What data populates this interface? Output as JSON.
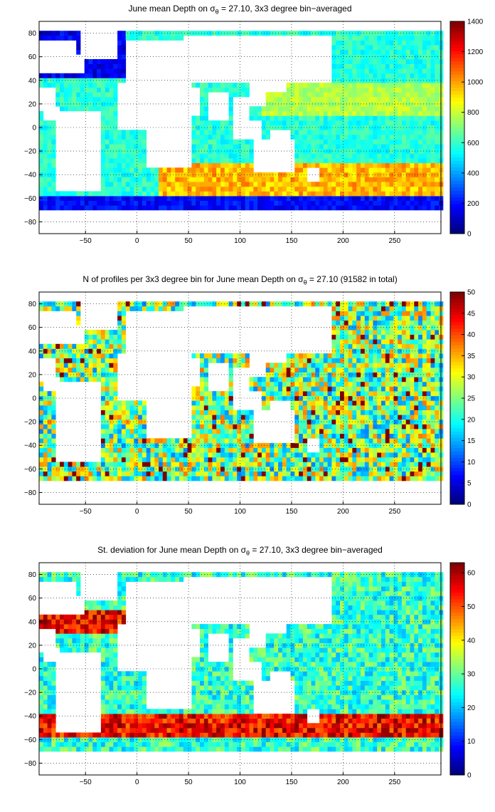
{
  "chart_data": [
    {
      "type": "heatmap",
      "title_pre": "June mean Depth on ",
      "title_sym": "σ",
      "title_sub": "θ",
      "title_post": " = 27.10, 3x3 degree bin−averaged",
      "xticks": [
        "−50",
        "0",
        "50",
        "100",
        "150",
        "200",
        "250"
      ],
      "xtick_values": [
        -50,
        0,
        50,
        100,
        150,
        200,
        250
      ],
      "yticks": [
        "80",
        "60",
        "40",
        "20",
        "0",
        "−20",
        "−40",
        "−60",
        "−80"
      ],
      "ytick_values": [
        80,
        60,
        40,
        20,
        0,
        -20,
        -40,
        -60,
        -80
      ],
      "xlim": [
        -95,
        295
      ],
      "ylim": [
        -90,
        90
      ],
      "grid": true,
      "colorbar_ticks": [
        "0",
        "200",
        "400",
        "600",
        "800",
        "1000",
        "1200",
        "1400"
      ],
      "clim": [
        0,
        1400
      ],
      "colormap": "jet"
    },
    {
      "type": "heatmap",
      "title_pre": "N of profiles per 3x3 degree bin for June mean Depth on ",
      "title_sym": "σ",
      "title_sub": "θ",
      "title_post": " = 27.10 (91582 in total)",
      "xticks": [
        "−50",
        "0",
        "50",
        "100",
        "150",
        "200",
        "250"
      ],
      "xtick_values": [
        -50,
        0,
        50,
        100,
        150,
        200,
        250
      ],
      "yticks": [
        "80",
        "60",
        "40",
        "20",
        "0",
        "−20",
        "−40",
        "−60",
        "−80"
      ],
      "ytick_values": [
        80,
        60,
        40,
        20,
        0,
        -20,
        -40,
        -60,
        -80
      ],
      "xlim": [
        -95,
        295
      ],
      "ylim": [
        -90,
        90
      ],
      "grid": true,
      "colorbar_ticks": [
        "0",
        "5",
        "10",
        "15",
        "20",
        "25",
        "30",
        "35",
        "40",
        "45",
        "50"
      ],
      "clim": [
        0,
        50
      ],
      "colormap": "jet"
    },
    {
      "type": "heatmap",
      "title_pre": "St. deviation for June mean Depth on ",
      "title_sym": "σ",
      "title_sub": "θ",
      "title_post": " = 27.10, 3x3 degree bin−averaged",
      "xticks": [
        "−50",
        "0",
        "50",
        "100",
        "150",
        "200",
        "250"
      ],
      "xtick_values": [
        -50,
        0,
        50,
        100,
        150,
        200,
        250
      ],
      "yticks": [
        "80",
        "60",
        "40",
        "20",
        "0",
        "−20",
        "−40",
        "−60",
        "−80"
      ],
      "ytick_values": [
        80,
        60,
        40,
        20,
        0,
        -20,
        -40,
        -60,
        -80
      ],
      "xlim": [
        -95,
        295
      ],
      "ylim": [
        -90,
        90
      ],
      "grid": true,
      "colorbar_ticks": [
        "0",
        "10",
        "20",
        "30",
        "40",
        "50",
        "60"
      ],
      "clim": [
        0,
        63
      ],
      "colormap": "jet"
    }
  ]
}
